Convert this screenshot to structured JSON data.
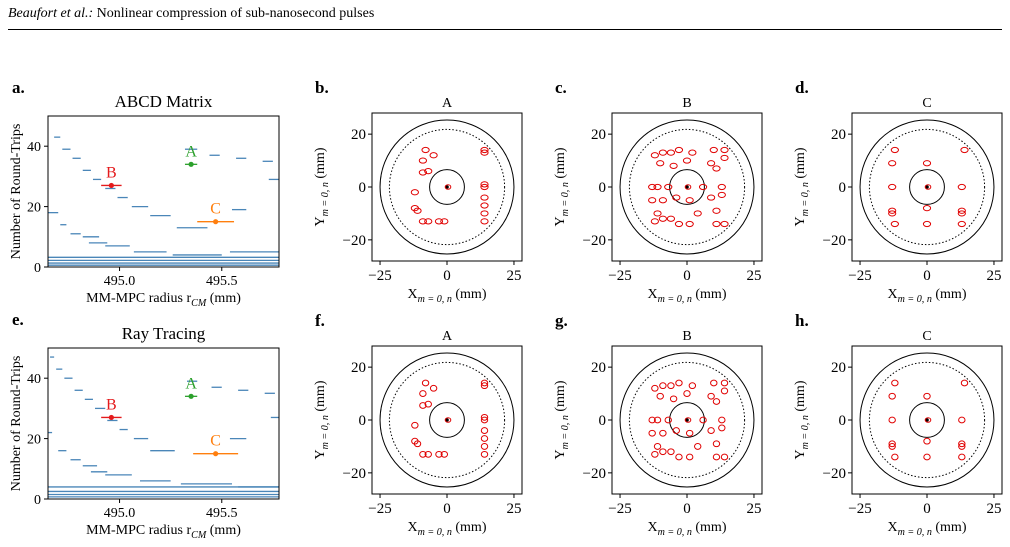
{
  "header": {
    "authors": "Beaufort et al.:",
    "title": "Nonlinear compression of sub-nanosecond pulses"
  },
  "colors": {
    "blue": "#4a86b8",
    "red": "#e41a1c",
    "green": "#2ca02c",
    "orange": "#ff7f0e",
    "ring": "#e00000"
  },
  "panels_left": [
    {
      "letter": "a.",
      "title": "ABCD Matrix"
    },
    {
      "letter": "e.",
      "title": "Ray Tracing"
    }
  ],
  "panels_spot": [
    {
      "letter": "b.",
      "title": "A"
    },
    {
      "letter": "c.",
      "title": "B"
    },
    {
      "letter": "d.",
      "title": "C"
    },
    {
      "letter": "f.",
      "title": "A"
    },
    {
      "letter": "g.",
      "title": "B"
    },
    {
      "letter": "h.",
      "title": "C"
    }
  ],
  "chart_data": [
    {
      "type": "scatter",
      "title": "ABCD Matrix",
      "xlabel": "MM-MPC radius r_CM (mm)",
      "ylabel": "Number of Round-Trips",
      "xlim": [
        494.65,
        495.78
      ],
      "ylim": [
        0,
        50
      ],
      "xticks": [
        "495.0",
        "495.5"
      ],
      "yticks": [
        "0",
        "20",
        "40"
      ],
      "points": [
        {
          "label": "B",
          "x": 494.96,
          "y": 27,
          "err": 0.05,
          "color": "#e41a1c"
        },
        {
          "label": "A",
          "x": 495.35,
          "y": 34,
          "err": 0.03,
          "color": "#2ca02c"
        },
        {
          "label": "C",
          "x": 495.47,
          "y": 15,
          "err": 0.09,
          "color": "#ff7f0e"
        }
      ],
      "segments": [
        [
          494.68,
          494.71,
          43
        ],
        [
          494.72,
          494.76,
          39
        ],
        [
          494.77,
          494.81,
          36
        ],
        [
          494.82,
          494.86,
          32
        ],
        [
          494.87,
          494.91,
          29
        ],
        [
          494.93,
          494.98,
          26
        ],
        [
          494.99,
          495.04,
          23
        ],
        [
          495.06,
          495.14,
          20
        ],
        [
          495.15,
          495.25,
          17
        ],
        [
          495.28,
          495.43,
          13
        ],
        [
          494.65,
          494.7,
          18
        ],
        [
          494.71,
          494.74,
          14
        ],
        [
          494.76,
          494.81,
          11
        ],
        [
          494.82,
          494.9,
          10
        ],
        [
          494.85,
          494.94,
          8
        ],
        [
          494.93,
          495.05,
          7
        ],
        [
          495.07,
          495.23,
          5
        ],
        [
          495.26,
          495.5,
          4
        ],
        [
          495.54,
          495.78,
          5
        ],
        [
          495.32,
          495.38,
          39
        ],
        [
          495.44,
          495.49,
          37
        ],
        [
          495.57,
          495.62,
          36
        ],
        [
          495.7,
          495.75,
          35
        ],
        [
          495.55,
          495.62,
          19
        ],
        [
          495.73,
          495.78,
          29
        ],
        [
          494.65,
          495.78,
          3.2
        ],
        [
          494.65,
          495.78,
          2.2
        ],
        [
          494.65,
          495.78,
          1.3
        ],
        [
          494.65,
          495.78,
          0.6
        ]
      ]
    },
    {
      "type": "scatter",
      "title": "Ray Tracing",
      "xlabel": "MM-MPC radius r_CM (mm)",
      "ylabel": "Number of Round-Trips",
      "xlim": [
        494.65,
        495.78
      ],
      "ylim": [
        0,
        50
      ],
      "xticks": [
        "495.0",
        "495.5"
      ],
      "yticks": [
        "0",
        "20",
        "40"
      ],
      "points": [
        {
          "label": "B",
          "x": 494.96,
          "y": 27,
          "err": 0.05,
          "color": "#e41a1c"
        },
        {
          "label": "A",
          "x": 495.35,
          "y": 34,
          "err": 0.03,
          "color": "#2ca02c"
        },
        {
          "label": "C",
          "x": 495.47,
          "y": 15,
          "err": 0.11,
          "color": "#ff7f0e"
        }
      ],
      "segments": [
        [
          494.66,
          494.68,
          47
        ],
        [
          494.69,
          494.72,
          43
        ],
        [
          494.73,
          494.77,
          40
        ],
        [
          494.78,
          494.82,
          36
        ],
        [
          494.83,
          494.87,
          33
        ],
        [
          494.88,
          494.93,
          30
        ],
        [
          494.94,
          494.99,
          26
        ],
        [
          495.0,
          495.04,
          23
        ],
        [
          495.07,
          495.14,
          20
        ],
        [
          495.15,
          495.27,
          16
        ],
        [
          494.65,
          494.67,
          22
        ],
        [
          494.7,
          494.74,
          16
        ],
        [
          494.76,
          494.81,
          13
        ],
        [
          494.82,
          494.89,
          11
        ],
        [
          494.86,
          494.94,
          9
        ],
        [
          494.93,
          495.06,
          8
        ],
        [
          495.1,
          495.25,
          6
        ],
        [
          495.3,
          495.55,
          5
        ],
        [
          495.58,
          495.78,
          4
        ],
        [
          495.33,
          495.38,
          39
        ],
        [
          495.45,
          495.5,
          37
        ],
        [
          495.58,
          495.63,
          36
        ],
        [
          495.71,
          495.76,
          35
        ],
        [
          495.54,
          495.62,
          20
        ],
        [
          495.74,
          495.78,
          27
        ],
        [
          494.65,
          495.78,
          4
        ],
        [
          494.65,
          495.78,
          2.5
        ],
        [
          494.65,
          495.78,
          1.5
        ],
        [
          494.65,
          495.78,
          0.7
        ]
      ]
    },
    {
      "type": "scatter",
      "title": "A",
      "xlabel": "X_{m = 0, n} (mm)",
      "ylabel": "Y_{m = 0, n} (mm)",
      "xlim": [
        -28,
        28
      ],
      "ylim": [
        -28,
        28
      ],
      "xticks": [
        "−25",
        "0",
        "25"
      ],
      "yticks": [
        "−20",
        "0",
        "20"
      ],
      "rings": [
        [
          -8,
          14
        ],
        [
          -5,
          12
        ],
        [
          -9,
          10
        ],
        [
          -7,
          6
        ],
        [
          -9,
          5.5
        ],
        [
          -12,
          -2
        ],
        [
          -12,
          -8
        ],
        [
          -11,
          -9
        ],
        [
          -9,
          -13
        ],
        [
          -7,
          -13
        ],
        [
          -3,
          -13
        ],
        [
          -1,
          -13
        ],
        [
          14,
          14
        ],
        [
          14,
          13
        ],
        [
          14,
          1
        ],
        [
          14,
          0
        ],
        [
          14,
          -4
        ],
        [
          14,
          -7
        ],
        [
          14,
          -10
        ],
        [
          14,
          -13
        ]
      ]
    },
    {
      "type": "scatter",
      "title": "B",
      "xlabel": "X_{m = 0, n} (mm)",
      "ylabel": "Y_{m = 0, n} (mm)",
      "xlim": [
        -28,
        28
      ],
      "ylim": [
        -28,
        28
      ],
      "xticks": [
        "−25",
        "0",
        "25"
      ],
      "yticks": [
        "−20",
        "0",
        "20"
      ],
      "rings": [
        [
          -12,
          12
        ],
        [
          -9,
          13
        ],
        [
          -6,
          13
        ],
        [
          -3,
          14
        ],
        [
          2,
          13
        ],
        [
          10,
          14
        ],
        [
          14,
          14
        ],
        [
          14,
          11
        ],
        [
          -10,
          9
        ],
        [
          -5,
          8
        ],
        [
          0,
          10
        ],
        [
          9,
          9
        ],
        [
          11,
          7
        ],
        [
          -13,
          0
        ],
        [
          -11,
          0
        ],
        [
          -7,
          0
        ],
        [
          6,
          0
        ],
        [
          13,
          0
        ],
        [
          -13,
          -5
        ],
        [
          -9,
          -5
        ],
        [
          -4,
          -4
        ],
        [
          1,
          -5
        ],
        [
          9,
          -4
        ],
        [
          13,
          -3
        ],
        [
          -12,
          -13
        ],
        [
          -9,
          -12
        ],
        [
          -6,
          -12
        ],
        [
          -3,
          -14
        ],
        [
          1,
          -14
        ],
        [
          11,
          -14
        ],
        [
          14,
          -14
        ],
        [
          -11,
          -10
        ],
        [
          4,
          -10
        ],
        [
          11,
          -9
        ]
      ]
    },
    {
      "type": "scatter",
      "title": "C",
      "xlabel": "X_{m = 0, n} (mm)",
      "ylabel": "Y_{m = 0, n} (mm)",
      "xlim": [
        -28,
        28
      ],
      "ylim": [
        -28,
        28
      ],
      "xticks": [
        "−25",
        "0",
        "25"
      ],
      "yticks": [
        "−20",
        "0",
        "20"
      ],
      "rings": [
        [
          -12,
          14
        ],
        [
          14,
          14
        ],
        [
          -13,
          9
        ],
        [
          0,
          9
        ],
        [
          -13,
          0
        ],
        [
          13,
          0
        ],
        [
          -13,
          -9
        ],
        [
          -13,
          -10
        ],
        [
          13,
          -9
        ],
        [
          13,
          -10
        ],
        [
          0,
          -8
        ],
        [
          -12,
          -14
        ],
        [
          0,
          -14
        ],
        [
          13,
          -14
        ]
      ]
    },
    {
      "type": "scatter",
      "title": "A",
      "xlabel": "X_{m = 0, n} (mm)",
      "ylabel": "Y_{m = 0, n} (mm)",
      "xlim": [
        -28,
        28
      ],
      "ylim": [
        -28,
        28
      ],
      "xticks": [
        "−25",
        "0",
        "25"
      ],
      "yticks": [
        "−20",
        "0",
        "20"
      ],
      "rings": [
        [
          -8,
          14
        ],
        [
          -5,
          12
        ],
        [
          -9,
          10
        ],
        [
          -7,
          6
        ],
        [
          -9,
          5.5
        ],
        [
          -12,
          -2
        ],
        [
          -12,
          -8
        ],
        [
          -11,
          -9
        ],
        [
          -9,
          -13
        ],
        [
          -7,
          -13
        ],
        [
          -3,
          -13
        ],
        [
          -1,
          -13
        ],
        [
          14,
          14
        ],
        [
          14,
          13
        ],
        [
          14,
          1
        ],
        [
          14,
          0
        ],
        [
          14,
          -4
        ],
        [
          14,
          -7
        ],
        [
          14,
          -10
        ],
        [
          14,
          -13
        ]
      ]
    },
    {
      "type": "scatter",
      "title": "B",
      "xlabel": "X_{m = 0, n} (mm)",
      "ylabel": "Y_{m = 0, n} (mm)",
      "xlim": [
        -28,
        28
      ],
      "ylim": [
        -28,
        28
      ],
      "xticks": [
        "−25",
        "0",
        "25"
      ],
      "yticks": [
        "−20",
        "0",
        "20"
      ],
      "rings": [
        [
          -12,
          12
        ],
        [
          -9,
          13
        ],
        [
          -6,
          13
        ],
        [
          -3,
          14
        ],
        [
          2,
          13
        ],
        [
          10,
          14
        ],
        [
          14,
          14
        ],
        [
          14,
          11
        ],
        [
          -10,
          9
        ],
        [
          -5,
          8
        ],
        [
          0,
          10
        ],
        [
          9,
          9
        ],
        [
          11,
          7
        ],
        [
          -13,
          0
        ],
        [
          -11,
          0
        ],
        [
          -7,
          0
        ],
        [
          6,
          0
        ],
        [
          13,
          0
        ],
        [
          -13,
          -5
        ],
        [
          -9,
          -5
        ],
        [
          -4,
          -4
        ],
        [
          1,
          -5
        ],
        [
          9,
          -4
        ],
        [
          13,
          -3
        ],
        [
          -12,
          -13
        ],
        [
          -9,
          -12
        ],
        [
          -6,
          -12
        ],
        [
          -3,
          -14
        ],
        [
          1,
          -14
        ],
        [
          11,
          -14
        ],
        [
          14,
          -14
        ],
        [
          -11,
          -10
        ],
        [
          4,
          -10
        ],
        [
          11,
          -9
        ]
      ]
    },
    {
      "type": "scatter",
      "title": "C",
      "xlabel": "X_{m = 0, n} (mm)",
      "ylabel": "Y_{m = 0, n} (mm)",
      "xlim": [
        -28,
        28
      ],
      "ylim": [
        -28,
        28
      ],
      "xticks": [
        "−25",
        "0",
        "25"
      ],
      "yticks": [
        "−20",
        "0",
        "20"
      ],
      "rings": [
        [
          -12,
          14
        ],
        [
          14,
          14
        ],
        [
          -13,
          9
        ],
        [
          0,
          9
        ],
        [
          -13,
          0
        ],
        [
          13,
          0
        ],
        [
          -13,
          -9
        ],
        [
          -13,
          -10
        ],
        [
          13,
          -9
        ],
        [
          13,
          -10
        ],
        [
          0,
          -8
        ],
        [
          -12,
          -14
        ],
        [
          0,
          -14
        ],
        [
          13,
          -14
        ]
      ]
    }
  ]
}
